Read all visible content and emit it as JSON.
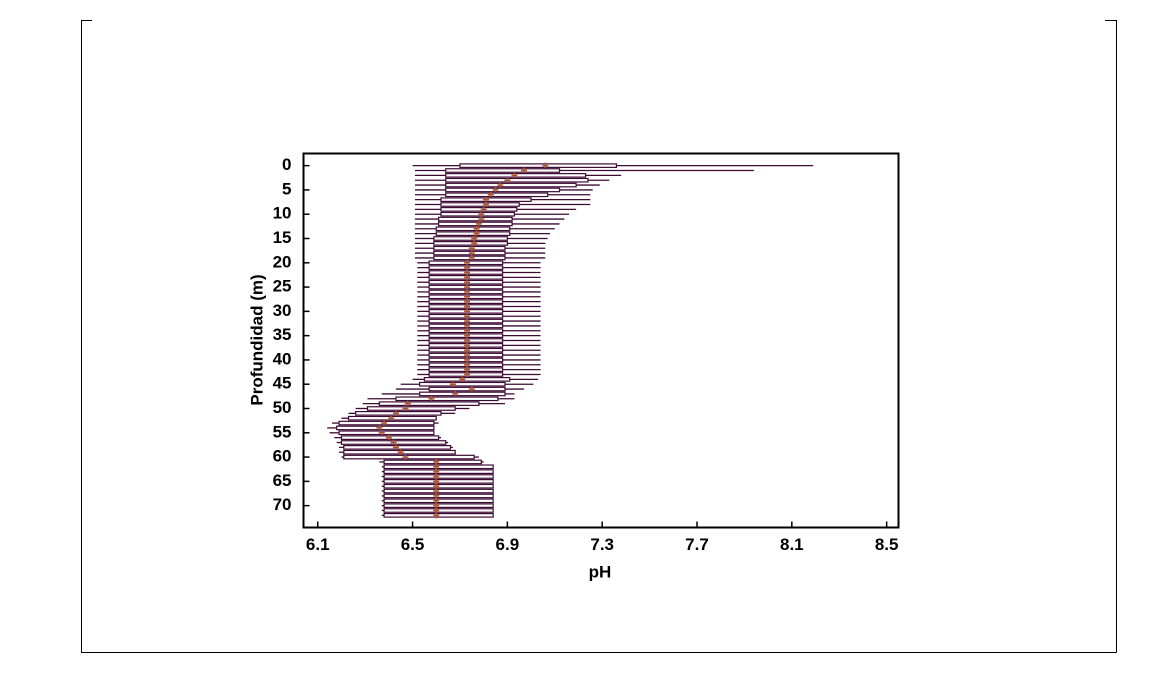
{
  "chart_data": {
    "type": "boxplot",
    "orientation": "horizontal",
    "x_label": "pH",
    "y_label": "Profundidad (m)",
    "xlim": [
      6.04,
      8.55
    ],
    "xticks": [
      6.1,
      6.5,
      6.9,
      7.3,
      7.7,
      8.1,
      8.5
    ],
    "ylim": [
      -2.5,
      74.5
    ],
    "yticks": [
      0,
      5,
      10,
      15,
      20,
      25,
      30,
      35,
      40,
      45,
      50,
      55,
      60,
      65,
      70
    ],
    "y_inverted": true,
    "box_color": "#3e0b35",
    "mean_color": "#b0552a",
    "y": [
      0,
      1,
      2,
      3,
      4,
      5,
      6,
      7,
      8,
      9,
      10,
      11,
      12,
      13,
      14,
      15,
      16,
      17,
      18,
      19,
      20,
      21,
      22,
      23,
      24,
      25,
      26,
      27,
      28,
      29,
      30,
      31,
      32,
      33,
      34,
      35,
      36,
      37,
      38,
      39,
      40,
      41,
      42,
      43,
      44,
      45,
      46,
      47,
      48,
      49,
      50,
      51,
      52,
      53,
      54,
      55,
      56,
      57,
      58,
      59,
      60,
      61,
      62,
      63,
      64,
      65,
      66,
      67,
      68,
      69,
      70,
      71,
      72
    ],
    "min": [
      6.5,
      6.51,
      6.51,
      6.51,
      6.51,
      6.51,
      6.51,
      6.51,
      6.51,
      6.51,
      6.51,
      6.51,
      6.51,
      6.51,
      6.51,
      6.51,
      6.51,
      6.51,
      6.51,
      6.51,
      6.52,
      6.52,
      6.52,
      6.52,
      6.52,
      6.52,
      6.52,
      6.52,
      6.52,
      6.52,
      6.52,
      6.52,
      6.52,
      6.52,
      6.52,
      6.52,
      6.52,
      6.52,
      6.52,
      6.52,
      6.52,
      6.52,
      6.52,
      6.52,
      6.5,
      6.45,
      6.43,
      6.37,
      6.31,
      6.29,
      6.26,
      6.23,
      6.2,
      6.16,
      6.14,
      6.15,
      6.17,
      6.18,
      6.19,
      6.19,
      6.2,
      6.36,
      6.37,
      6.37,
      6.37,
      6.37,
      6.37,
      6.37,
      6.37,
      6.37,
      6.37,
      6.37,
      6.37
    ],
    "q1": [
      6.7,
      6.64,
      6.64,
      6.64,
      6.64,
      6.64,
      6.64,
      6.62,
      6.62,
      6.62,
      6.62,
      6.61,
      6.61,
      6.6,
      6.6,
      6.59,
      6.59,
      6.59,
      6.59,
      6.59,
      6.57,
      6.57,
      6.57,
      6.57,
      6.57,
      6.57,
      6.57,
      6.57,
      6.57,
      6.57,
      6.57,
      6.57,
      6.57,
      6.57,
      6.57,
      6.57,
      6.57,
      6.57,
      6.57,
      6.57,
      6.57,
      6.57,
      6.57,
      6.57,
      6.55,
      6.53,
      6.57,
      6.53,
      6.43,
      6.36,
      6.31,
      6.26,
      6.23,
      6.19,
      6.18,
      6.19,
      6.2,
      6.2,
      6.21,
      6.21,
      6.21,
      6.38,
      6.38,
      6.38,
      6.38,
      6.38,
      6.38,
      6.38,
      6.38,
      6.38,
      6.38,
      6.38,
      6.38
    ],
    "q3": [
      7.36,
      7.12,
      7.23,
      7.24,
      7.19,
      7.12,
      7.07,
      7.0,
      6.95,
      6.94,
      6.93,
      6.92,
      6.92,
      6.91,
      6.91,
      6.9,
      6.9,
      6.89,
      6.89,
      6.89,
      6.88,
      6.88,
      6.88,
      6.88,
      6.88,
      6.88,
      6.88,
      6.88,
      6.88,
      6.88,
      6.88,
      6.88,
      6.88,
      6.88,
      6.88,
      6.88,
      6.88,
      6.88,
      6.88,
      6.88,
      6.88,
      6.88,
      6.88,
      6.88,
      6.91,
      6.89,
      6.89,
      6.89,
      6.86,
      6.78,
      6.68,
      6.62,
      6.6,
      6.59,
      6.59,
      6.59,
      6.61,
      6.64,
      6.66,
      6.68,
      6.76,
      6.79,
      6.84,
      6.84,
      6.84,
      6.84,
      6.84,
      6.84,
      6.84,
      6.84,
      6.84,
      6.84,
      6.84
    ],
    "max": [
      8.19,
      7.94,
      7.38,
      7.33,
      7.29,
      7.26,
      7.25,
      7.25,
      7.25,
      7.19,
      7.16,
      7.14,
      7.12,
      7.1,
      7.08,
      7.07,
      7.06,
      7.06,
      7.06,
      7.06,
      7.04,
      7.04,
      7.04,
      7.04,
      7.04,
      7.04,
      7.04,
      7.04,
      7.04,
      7.04,
      7.04,
      7.04,
      7.04,
      7.04,
      7.04,
      7.04,
      7.04,
      7.04,
      7.04,
      7.04,
      7.04,
      7.04,
      7.04,
      7.04,
      7.03,
      7.01,
      6.97,
      6.93,
      6.93,
      6.89,
      6.74,
      6.68,
      6.6,
      6.61,
      6.59,
      6.59,
      6.62,
      6.65,
      6.67,
      6.68,
      6.78,
      6.8,
      6.84,
      6.84,
      6.84,
      6.84,
      6.84,
      6.84,
      6.84,
      6.84,
      6.84,
      6.84,
      6.84
    ],
    "mean": [
      7.06,
      6.97,
      6.93,
      6.9,
      6.87,
      6.85,
      6.83,
      6.81,
      6.81,
      6.8,
      6.79,
      6.79,
      6.78,
      6.77,
      6.77,
      6.76,
      6.76,
      6.75,
      6.75,
      6.75,
      6.73,
      6.73,
      6.73,
      6.73,
      6.73,
      6.73,
      6.73,
      6.73,
      6.73,
      6.73,
      6.73,
      6.73,
      6.73,
      6.73,
      6.73,
      6.73,
      6.73,
      6.73,
      6.73,
      6.73,
      6.73,
      6.73,
      6.73,
      6.73,
      6.71,
      6.67,
      6.75,
      6.68,
      6.58,
      6.48,
      6.47,
      6.43,
      6.41,
      6.38,
      6.36,
      6.37,
      6.4,
      6.42,
      6.43,
      6.45,
      6.47,
      6.6,
      6.6,
      6.6,
      6.6,
      6.6,
      6.6,
      6.6,
      6.6,
      6.6,
      6.6,
      6.6,
      6.6
    ]
  }
}
